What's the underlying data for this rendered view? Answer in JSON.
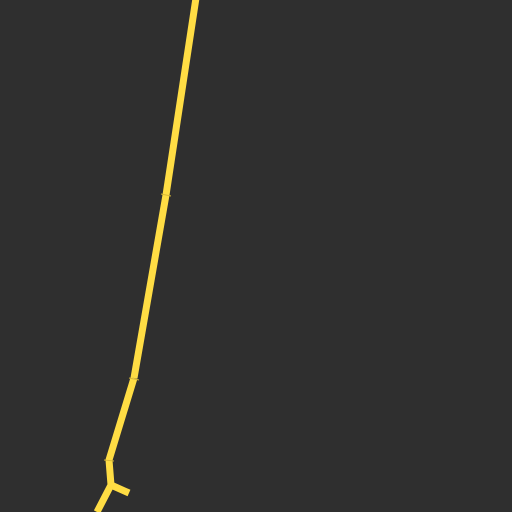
{
  "map": {
    "background_color": "#2f2f2f",
    "road_color": "#ffdd44"
  }
}
